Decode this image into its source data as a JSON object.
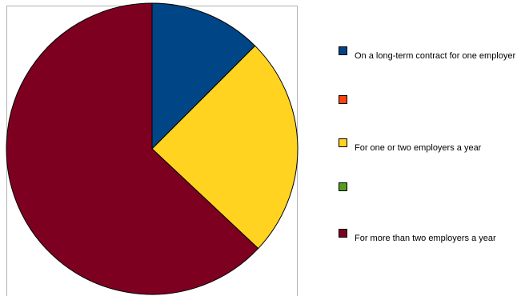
{
  "chart_data": {
    "type": "pie",
    "title": "",
    "categories": [
      "On a long-term contract for one employer",
      "",
      "For one or two employers a year",
      "",
      "For more than two employers a year"
    ],
    "values": [
      12.5,
      0,
      24.5,
      0,
      63
    ],
    "colors": [
      "#004586",
      "#ff420e",
      "#ffd320",
      "#579d1c",
      "#7e0021"
    ],
    "legend_position": "right"
  }
}
